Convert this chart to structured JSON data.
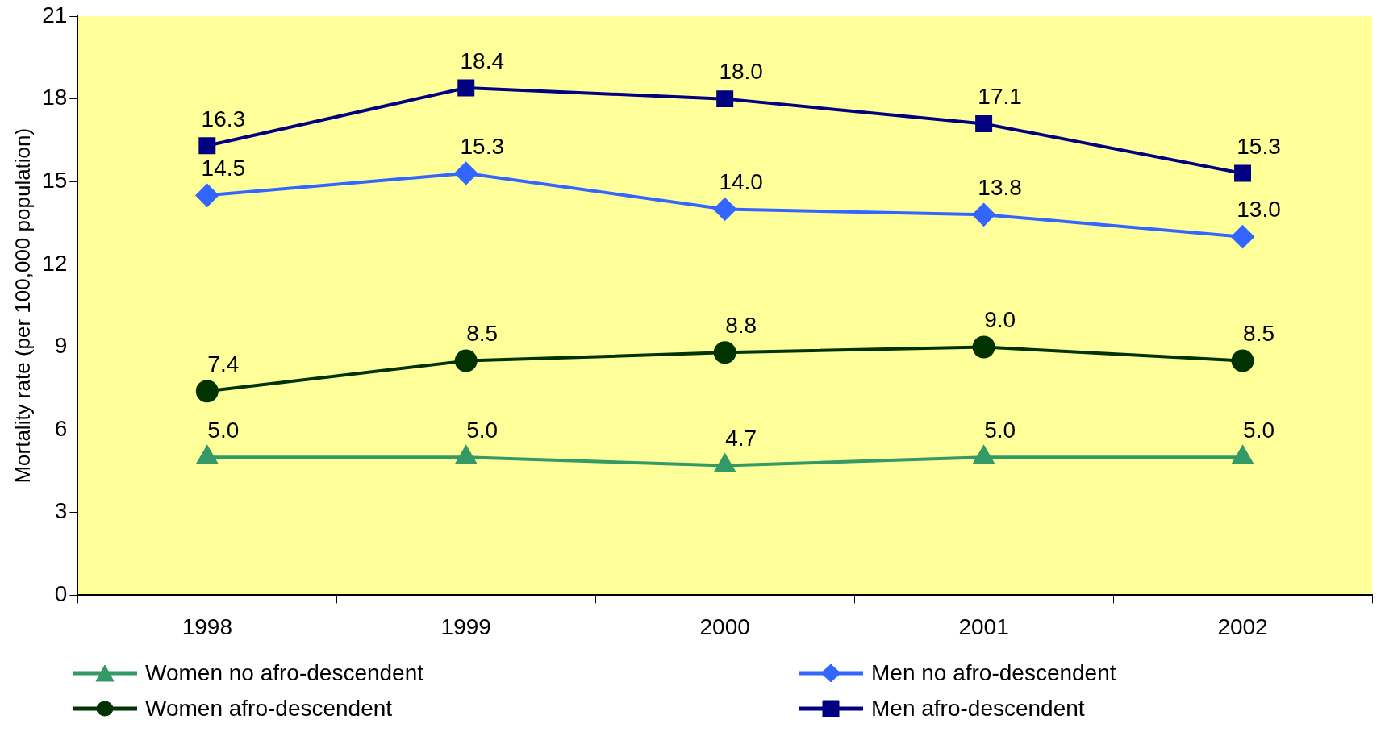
{
  "chart_data": {
    "type": "line",
    "ylabel": "Mortality rate (per 100,000 population)",
    "categories": [
      "1998",
      "1999",
      "2000",
      "2001",
      "2002"
    ],
    "series": [
      {
        "name": "Women no afro-descendent",
        "color": "#339966",
        "marker": "triangle",
        "values": [
          5.0,
          5.0,
          4.7,
          5.0,
          5.0
        ],
        "value_labels": [
          "5.0",
          "5.0",
          "4.7",
          "5.0",
          "5.0"
        ]
      },
      {
        "name": "Men no afro-descendent",
        "color": "#3366ff",
        "marker": "diamond",
        "values": [
          14.5,
          15.3,
          14.0,
          13.8,
          13.0
        ],
        "value_labels": [
          "14.5",
          "15.3",
          "14.0",
          "13.8",
          "13.0"
        ]
      },
      {
        "name": "Women afro-descendent",
        "color": "#003300",
        "marker": "circle",
        "values": [
          7.4,
          8.5,
          8.8,
          9.0,
          8.5
        ],
        "value_labels": [
          "7.4",
          "8.5",
          "8.8",
          "9.0",
          "8.5"
        ]
      },
      {
        "name": "Men afro-descendent",
        "color": "#000080",
        "marker": "square",
        "values": [
          16.3,
          18.4,
          18.0,
          17.1,
          15.3
        ],
        "value_labels": [
          "16.3",
          "18.4",
          "18.0",
          "17.1",
          "15.3"
        ]
      }
    ],
    "ylim": [
      0,
      21
    ],
    "yticks": [
      0,
      3,
      6,
      9,
      12,
      15,
      18,
      21
    ],
    "grid": false,
    "legend": "bottom"
  }
}
